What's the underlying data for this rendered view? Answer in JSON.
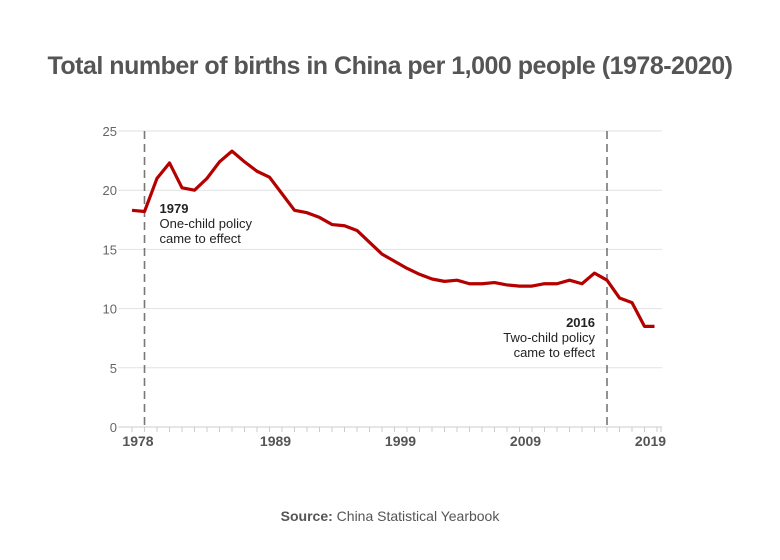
{
  "chart_data": {
    "type": "line",
    "title": "Total number of births in China per 1,000 people (1978-2020)",
    "xlabel": "",
    "ylabel": "",
    "xlim": [
      1978,
      2020
    ],
    "ylim": [
      0,
      25
    ],
    "grid": true,
    "yticks": [
      0,
      5,
      10,
      15,
      20,
      25
    ],
    "xticks": [
      1978,
      1989,
      1999,
      2009,
      2019
    ],
    "x": [
      1978,
      1979,
      1980,
      1981,
      1982,
      1983,
      1984,
      1985,
      1986,
      1987,
      1988,
      1989,
      1990,
      1991,
      1992,
      1993,
      1994,
      1995,
      1996,
      1997,
      1998,
      1999,
      2000,
      2001,
      2002,
      2003,
      2004,
      2005,
      2006,
      2007,
      2008,
      2009,
      2010,
      2011,
      2012,
      2013,
      2014,
      2015,
      2016,
      2017,
      2018,
      2019,
      2020
    ],
    "series": [
      {
        "values": [
          18.3,
          18.2,
          21.0,
          22.3,
          20.2,
          20.0,
          21.0,
          22.4,
          23.3,
          22.4,
          21.6,
          21.1,
          19.7,
          18.3,
          18.1,
          17.7,
          17.1,
          17.0,
          16.6,
          15.6,
          14.6,
          14.0,
          13.4,
          12.9,
          12.5,
          12.3,
          12.4,
          12.1,
          12.1,
          12.2,
          12.0,
          11.9,
          11.9,
          12.1,
          12.1,
          12.4,
          12.1,
          13.0,
          12.4,
          10.9,
          10.5,
          8.5,
          8.5
        ],
        "color": "#b50000"
      }
    ],
    "annotations": [
      {
        "year": 1979,
        "bold": "1979",
        "line1": "One-child policy",
        "line2": "came to effect",
        "align": "left"
      },
      {
        "year": 2016,
        "bold": "2016",
        "line1": "Two-child policy",
        "line2": "came to effect",
        "align": "right"
      }
    ]
  },
  "source": {
    "label": "Source:",
    "text": "China Statistical Yearbook"
  }
}
